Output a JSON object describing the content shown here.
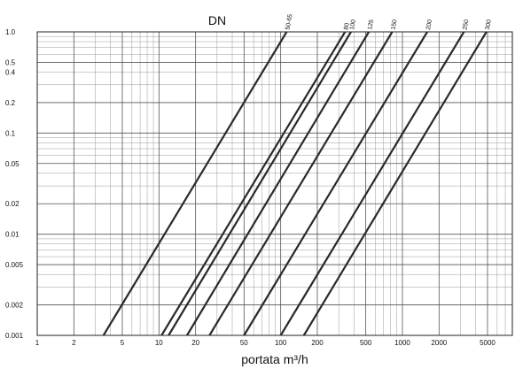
{
  "chart_data": {
    "type": "line",
    "title": "DN",
    "xlabel": "portata m³/h",
    "ylabel": "",
    "xscale": "log",
    "yscale": "log",
    "xlim": [
      1,
      8000
    ],
    "ylim": [
      0.001,
      1.0
    ],
    "grid": true,
    "x_ticks": [
      1,
      2,
      5,
      10,
      20,
      50,
      100,
      200,
      500,
      1000,
      2000,
      5000
    ],
    "x_tick_labels": [
      "1",
      "2",
      "5",
      "10",
      "20",
      "50",
      "100",
      "200",
      "500",
      "1000",
      "2000",
      "5000"
    ],
    "y_ticks": [
      0.001,
      0.002,
      0.005,
      0.01,
      0.02,
      0.05,
      0.1,
      0.2,
      0.4,
      0.5,
      1.0
    ],
    "y_tick_labels": [
      "0.001",
      "0.002",
      "0.005",
      "0.01",
      "0.02",
      "0.05",
      "0.1",
      "0.2",
      "0.4",
      "0.5",
      "1.0"
    ],
    "series": [
      {
        "name": "50-65",
        "x": [
          3.5,
          112
        ],
        "y": [
          0.001,
          1.0
        ]
      },
      {
        "name": "80",
        "x": [
          10.5,
          338
        ],
        "y": [
          0.001,
          1.0
        ]
      },
      {
        "name": "100",
        "x": [
          12,
          378
        ],
        "y": [
          0.001,
          1.0
        ]
      },
      {
        "name": "125",
        "x": [
          17,
          530
        ],
        "y": [
          0.001,
          1.0
        ]
      },
      {
        "name": "150",
        "x": [
          26,
          825
        ],
        "y": [
          0.001,
          1.0
        ]
      },
      {
        "name": "200",
        "x": [
          50,
          1600
        ],
        "y": [
          0.001,
          1.0
        ]
      },
      {
        "name": "250",
        "x": [
          100,
          3200
        ],
        "y": [
          0.001,
          1.0
        ]
      },
      {
        "name": "300",
        "x": [
          155,
          4900
        ],
        "y": [
          0.001,
          1.0
        ]
      }
    ]
  }
}
